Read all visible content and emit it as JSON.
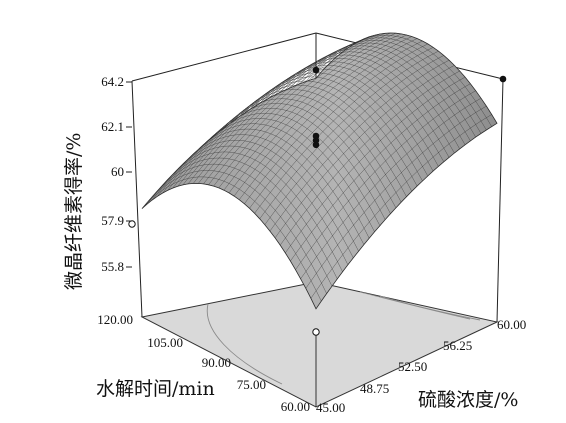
{
  "chart_data": {
    "type": "surface3d",
    "title": "",
    "xlabel": "水解时间/min",
    "ylabel": "硫酸浓度/%",
    "zlabel": "微晶纤维素得率/%",
    "x_ticks": [
      "60.00",
      "75.00",
      "90.00",
      "105.00",
      "120.00"
    ],
    "y_ticks": [
      "45.00",
      "48.75",
      "52.50",
      "56.25",
      "60.00"
    ],
    "z_ticks": [
      "55.8",
      "57.9",
      "60",
      "62.1",
      "64.2"
    ],
    "xlim": [
      60,
      120
    ],
    "ylim": [
      45,
      60
    ],
    "zlim": [
      53.7,
      64.2
    ],
    "surface_corners": [
      {
        "x": 60,
        "y": 45,
        "z": 54.6
      },
      {
        "x": 120,
        "y": 45,
        "z": 57.9
      },
      {
        "x": 120,
        "y": 60,
        "z": 61.6
      },
      {
        "x": 60,
        "y": 60,
        "z": 61.4
      }
    ],
    "design_points": [
      {
        "x": 90,
        "y": 52.5,
        "z": 61.0
      },
      {
        "x": 90,
        "y": 52.5,
        "z": 61.2
      },
      {
        "x": 90,
        "y": 52.5,
        "z": 61.4
      },
      {
        "x": 60,
        "y": 45,
        "z": 54.6
      },
      {
        "x": 120,
        "y": 45,
        "z": 57.9
      },
      {
        "x": 60,
        "y": 60,
        "z": 64.2
      },
      {
        "x": 120,
        "y": 60,
        "z": 64.2
      }
    ],
    "colors": {
      "surface": "#a6a6a6",
      "floor": "#d9d9d9",
      "mesh": "#2e2e2e"
    }
  }
}
